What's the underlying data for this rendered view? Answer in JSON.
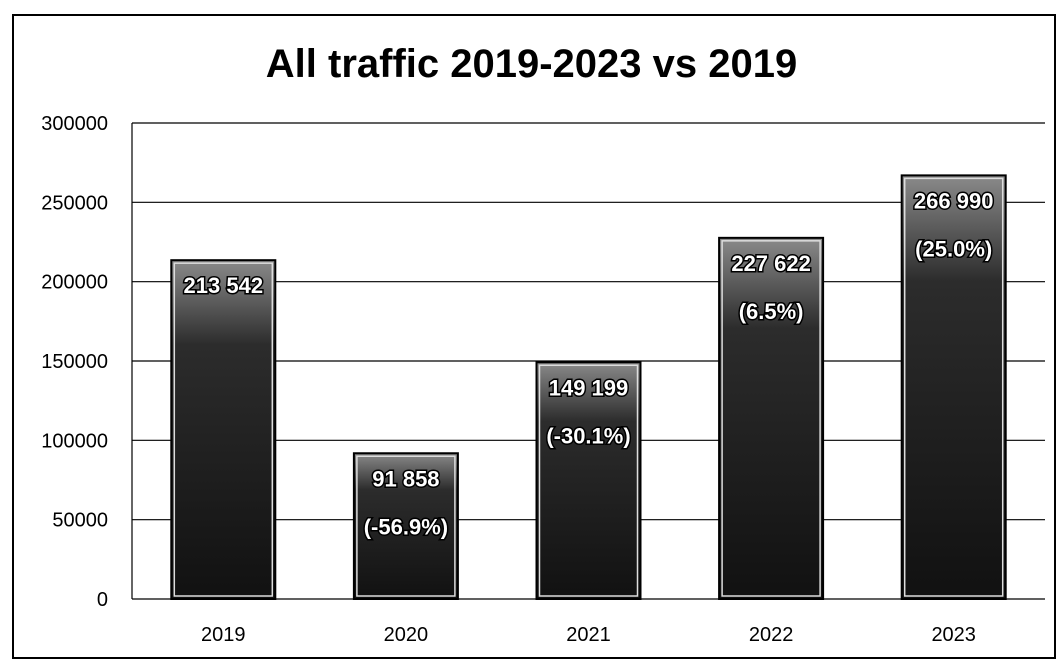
{
  "chart_data": {
    "type": "bar",
    "title": "All traffic 2019-2023 vs 2019",
    "xlabel": "",
    "ylabel": "",
    "categories": [
      "2019",
      "2020",
      "2021",
      "2022",
      "2023"
    ],
    "values": [
      213542,
      91858,
      149199,
      227622,
      266990
    ],
    "value_labels": [
      "213 542",
      "91 858",
      "149 199",
      "227 622",
      "266 990"
    ],
    "change_labels": [
      "",
      "(-56.9%)",
      "(-30.1%)",
      "(6.5%)",
      "(25.0%)"
    ],
    "y_ticks": [
      "0",
      "50000",
      "100000",
      "150000",
      "200000",
      "250000",
      "300000"
    ],
    "ylim": [
      0,
      300000
    ],
    "grid": true,
    "legend": "none",
    "colors": {
      "bar": "#1a1a1a",
      "grid": "#000000",
      "label_fill": "#ffffff"
    }
  }
}
